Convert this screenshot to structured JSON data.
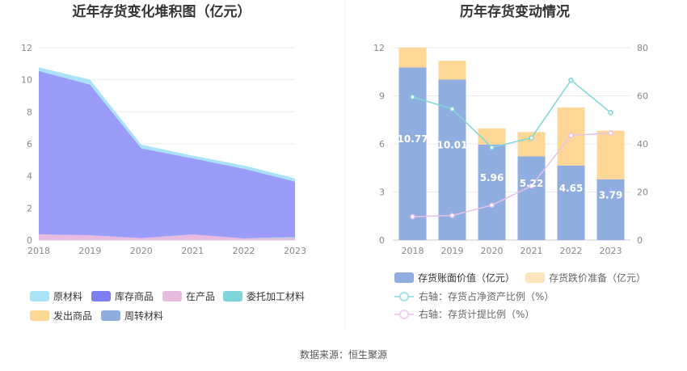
{
  "source": "数据来源：恒生聚源",
  "charts": {
    "left": {
      "title": "近年存货变化堆积图（亿元）",
      "legend": [
        "原材料",
        "库存商品",
        "在产品",
        "委托加工材料",
        "发出商品",
        "周转材料"
      ],
      "y_ticks": [
        "0",
        "2",
        "4",
        "6",
        "8",
        "10",
        "12"
      ],
      "x_ticks": [
        "2018",
        "2019",
        "2020",
        "2021",
        "2022",
        "2023"
      ]
    },
    "right": {
      "title": "历年存货变动情况",
      "legend": [
        "存货账面价值（亿元）",
        "存货跌价准备（亿元）",
        "右轴：存货占净资产比例（%）",
        "右轴：存货计提比例（%）"
      ],
      "y_left_ticks": [
        "0",
        "3",
        "6",
        "9",
        "12"
      ],
      "y_right_ticks": [
        "0",
        "20",
        "40",
        "60",
        "80"
      ],
      "x_ticks": [
        "2018",
        "2019",
        "2020",
        "2021",
        "2022",
        "2023"
      ],
      "bar_labels": [
        "10.77",
        "10.01",
        "5.96",
        "5.22",
        "4.65",
        "3.79"
      ]
    }
  },
  "chart_data": [
    {
      "type": "area",
      "title": "近年存货变化堆积图（亿元）",
      "x": [
        "2018",
        "2019",
        "2020",
        "2021",
        "2022",
        "2023"
      ],
      "ylim": [
        0,
        12
      ],
      "stacked": true,
      "series": [
        {
          "name": "在产品",
          "color": "#e8bce0",
          "values": [
            0.35,
            0.3,
            0.12,
            0.35,
            0.1,
            0.15
          ]
        },
        {
          "name": "委托加工材料",
          "color": "#7ed6d8",
          "values": [
            0.0,
            0.0,
            0.0,
            0.0,
            0.0,
            0.05
          ]
        },
        {
          "name": "库存商品",
          "color": "#9a9cf7",
          "values": [
            10.2,
            9.4,
            5.6,
            4.75,
            4.35,
            3.45
          ]
        },
        {
          "name": "原材料",
          "color": "#a9e3f9",
          "values": [
            0.22,
            0.31,
            0.23,
            0.17,
            0.2,
            0.2
          ]
        },
        {
          "name": "发出商品",
          "color": "#fdd795",
          "values": [
            0,
            0,
            0,
            0,
            0,
            0
          ]
        },
        {
          "name": "周转材料",
          "color": "#8fadde",
          "values": [
            0,
            0,
            0,
            0,
            0,
            0
          ]
        }
      ],
      "grid": true,
      "legend_position": "bottom"
    },
    {
      "type": "bar",
      "title": "历年存货变动情况",
      "categories": [
        "2018",
        "2019",
        "2020",
        "2021",
        "2022",
        "2023"
      ],
      "ylim_left": [
        0,
        12
      ],
      "ylim_right": [
        0,
        80
      ],
      "stacked": true,
      "series": [
        {
          "name": "存货账面价值（亿元）",
          "axis": "left",
          "color": "#8fadde",
          "values": [
            10.77,
            10.01,
            5.96,
            5.22,
            4.65,
            3.79
          ]
        },
        {
          "name": "存货跌价准备（亿元）",
          "axis": "left",
          "color": "#fdd795",
          "values": [
            1.23,
            1.17,
            1.01,
            1.52,
            3.62,
            3.03
          ]
        },
        {
          "name": "右轴：存货占净资产比例（%）",
          "axis": "right",
          "type": "line",
          "color": "#7fd6d8",
          "values": [
            59.5,
            54.5,
            38.5,
            42.5,
            66.5,
            53.0
          ]
        },
        {
          "name": "右轴：存货计提比例（%）",
          "axis": "right",
          "type": "line",
          "color": "#e9c2ea",
          "values": [
            9.7,
            10.2,
            14.5,
            22.5,
            43.5,
            44.5
          ]
        }
      ],
      "grid": true,
      "legend_position": "bottom"
    }
  ]
}
